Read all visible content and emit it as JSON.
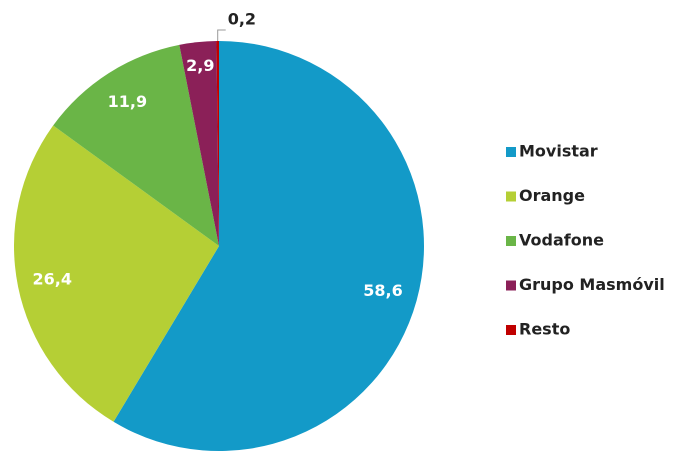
{
  "chart_data": {
    "type": "pie",
    "categories": [
      "Movistar",
      "Orange",
      "Vodafone",
      "Grupo Masmóvil",
      "Resto"
    ],
    "values": [
      58.6,
      26.4,
      11.9,
      2.9,
      0.2
    ],
    "value_labels": [
      "58,6",
      "26,4",
      "11,9",
      "2,9",
      "0,2"
    ],
    "colors": [
      "#139ac8",
      "#b5cf35",
      "#6ab547",
      "#8b2058",
      "#c00000"
    ],
    "legend": "right"
  }
}
